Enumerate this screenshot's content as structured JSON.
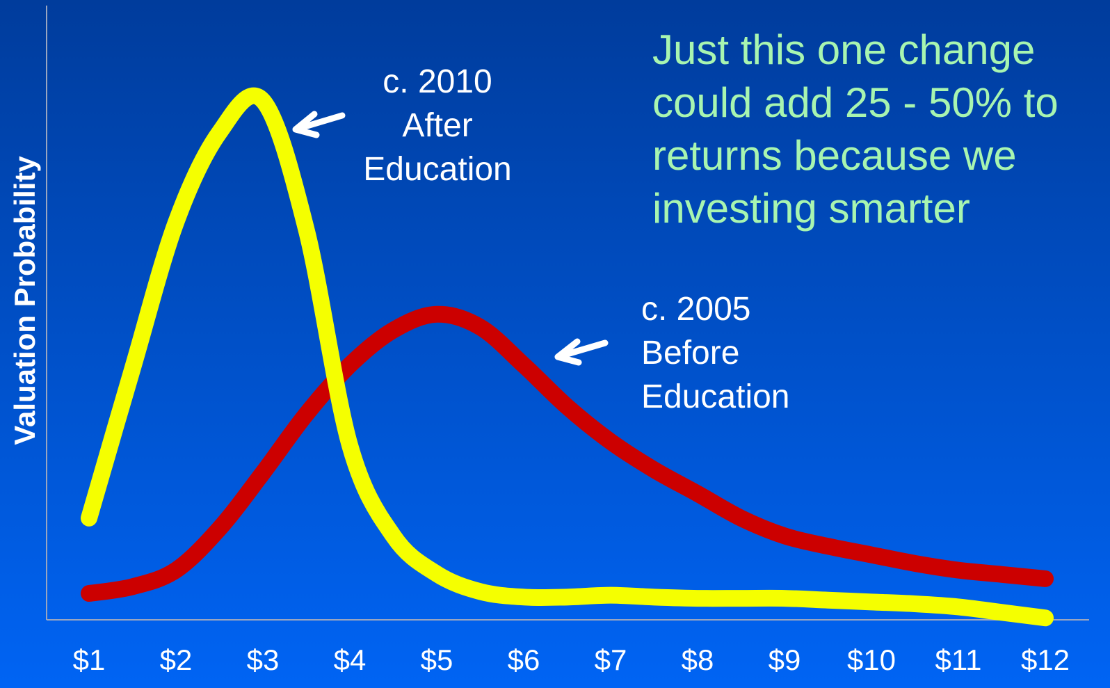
{
  "chart_data": {
    "type": "line",
    "y_label": "Valuation Probability",
    "x": [
      1,
      1.5,
      2,
      2.5,
      3,
      3.5,
      4,
      4.5,
      5,
      5.5,
      6,
      6.5,
      7,
      7.5,
      8,
      8.5,
      9,
      9.5,
      10,
      10.5,
      11,
      11.5,
      12
    ],
    "xlim": [
      0.5,
      12.5
    ],
    "xticks": [
      {
        "value": 1,
        "label": "$1"
      },
      {
        "value": 2,
        "label": "$2"
      },
      {
        "value": 3,
        "label": "$3"
      },
      {
        "value": 4,
        "label": "$4"
      },
      {
        "value": 5,
        "label": "$5"
      },
      {
        "value": 6,
        "label": "$6"
      },
      {
        "value": 7,
        "label": "$7"
      },
      {
        "value": 8,
        "label": "$8"
      },
      {
        "value": 9,
        "label": "$9"
      },
      {
        "value": 10,
        "label": "$10"
      },
      {
        "value": 11,
        "label": "$11"
      },
      {
        "value": 12,
        "label": "$12"
      }
    ],
    "ylim": [
      0,
      100
    ],
    "series": [
      {
        "name": [
          "c. 2010",
          "After",
          "Education"
        ],
        "color": "#f5ff00",
        "values": [
          16.5,
          40.9,
          64.8,
          79.5,
          84.7,
          63.6,
          28.4,
          13.6,
          7.4,
          4.5,
          3.6,
          3.6,
          3.9,
          3.6,
          3.4,
          3.4,
          3.4,
          3.1,
          2.8,
          2.5,
          2.0,
          1.1,
          0.2
        ]
      },
      {
        "name": [
          "c. 2005",
          "Before",
          "Education"
        ],
        "color": "#cc0000",
        "values": [
          4.2,
          5.3,
          8.0,
          14.8,
          23.9,
          33.5,
          41.5,
          47.2,
          49.8,
          47.7,
          41.5,
          34.7,
          29.0,
          24.4,
          20.5,
          16.5,
          13.6,
          11.9,
          10.5,
          9.1,
          8.0,
          7.3,
          6.6
        ]
      }
    ],
    "annotation": [
      "Just this one change",
      "could add 25 - 50% to",
      "returns because we",
      "investing smarter"
    ]
  }
}
